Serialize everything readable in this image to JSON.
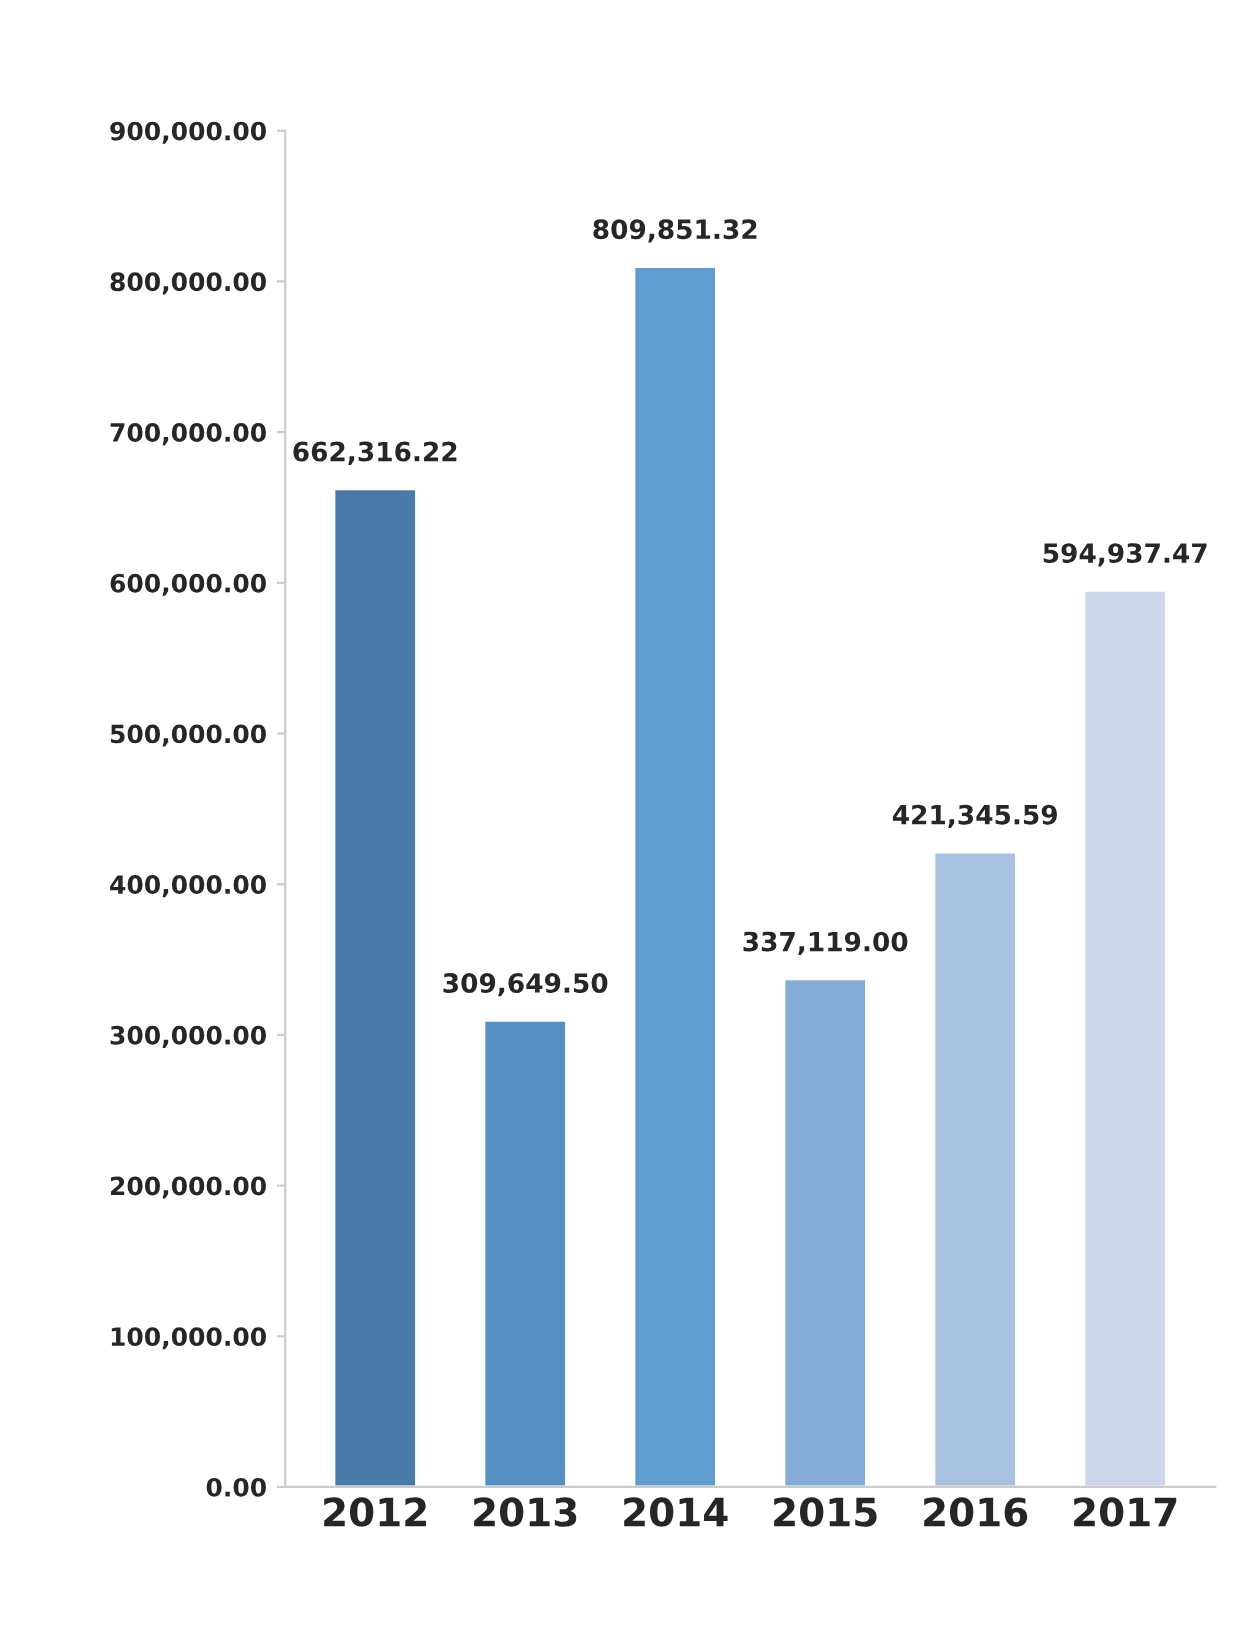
{
  "chart_data": {
    "type": "bar",
    "categories": [
      "2012",
      "2013",
      "2014",
      "2015",
      "2016",
      "2017"
    ],
    "values": [
      662316.22,
      309649.5,
      809851.32,
      337119.0,
      421345.59,
      594937.47
    ],
    "value_labels": [
      "662,316.22",
      "309,649.50",
      "809,851.32",
      "337,119.00",
      "421,345.59",
      "594,937.47"
    ],
    "colors": [
      "#4a7aa8",
      "#5590c4",
      "#5f9ccf",
      "#84acd6",
      "#a9c1e0",
      "#ccd8ea"
    ],
    "ylim": [
      0,
      900000
    ],
    "yticks": [
      {
        "value": 0,
        "label": "0.00"
      },
      {
        "value": 100000,
        "label": "100,000.00"
      },
      {
        "value": 200000,
        "label": "200,000.00"
      },
      {
        "value": 300000,
        "label": "300,000.00"
      },
      {
        "value": 400000,
        "label": "400,000.00"
      },
      {
        "value": 500000,
        "label": "500,000.00"
      },
      {
        "value": 600000,
        "label": "600,000.00"
      },
      {
        "value": 700000,
        "label": "700,000.00"
      },
      {
        "value": 800000,
        "label": "800,000.00"
      },
      {
        "value": 900000,
        "label": "900,000.00"
      }
    ],
    "grid": false
  }
}
